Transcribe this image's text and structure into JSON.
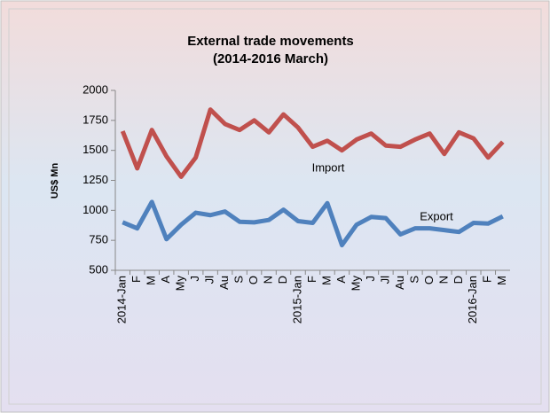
{
  "chart_data": {
    "type": "line",
    "title": "External trade movements",
    "subtitle": "(2014-2016 March)",
    "y_label": "US$ Mn",
    "categories": [
      "2014-Jan",
      "F",
      "M",
      "A",
      "My",
      "J",
      "Jl",
      "Au",
      "S",
      "O",
      "N",
      "D",
      "2015-Jan",
      "F",
      "M",
      "A",
      "My",
      "J",
      "Jl",
      "Au",
      "S",
      "O",
      "N",
      "D",
      "2016-Jan",
      "F",
      "M"
    ],
    "series": [
      {
        "name": "Import",
        "color": "#c0504d",
        "values": [
          1660,
          1350,
          1670,
          1450,
          1280,
          1440,
          1840,
          1720,
          1670,
          1750,
          1650,
          1800,
          1690,
          1530,
          1580,
          1500,
          1590,
          1640,
          1540,
          1530,
          1590,
          1640,
          1470,
          1650,
          1600,
          1440,
          1570
        ]
      },
      {
        "name": "Export",
        "color": "#4f81bd",
        "values": [
          900,
          850,
          1070,
          760,
          880,
          980,
          960,
          990,
          905,
          900,
          920,
          1005,
          910,
          895,
          1060,
          710,
          880,
          945,
          935,
          800,
          850,
          850,
          835,
          820,
          895,
          890,
          950
        ]
      }
    ],
    "ylim": [
      500,
      2000
    ],
    "yticks": [
      500,
      750,
      1000,
      1250,
      1500,
      1750,
      2000
    ],
    "grid": false
  }
}
